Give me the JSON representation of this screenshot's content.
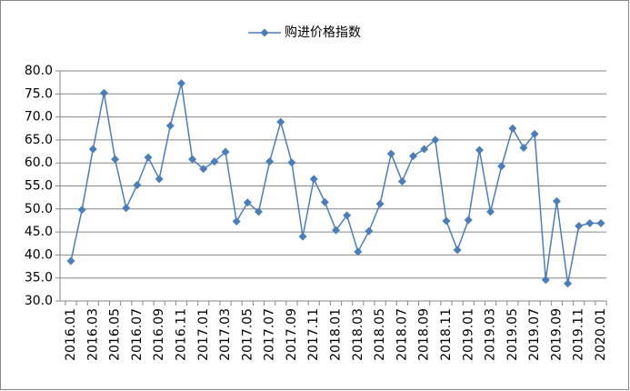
{
  "chart_data": {
    "type": "line",
    "categories": [
      "2016.01",
      null,
      "2016.03",
      null,
      "2016.05",
      null,
      "2016.07",
      null,
      "2016.09",
      null,
      "2016.11",
      null,
      "2017.01",
      null,
      "2017.03",
      null,
      "2017.05",
      null,
      "2017.07",
      null,
      "2017.09",
      null,
      "2017.11",
      null,
      "2018.01",
      null,
      "2018.03",
      null,
      "2018.05",
      null,
      "2018.07",
      null,
      "2018.09",
      null,
      "2018.11",
      null,
      "2019.01",
      null,
      "2019.03",
      null,
      "2019.05",
      null,
      "2019.07",
      null,
      "2019.09",
      null,
      "2019.11",
      null,
      "2020.01"
    ],
    "series": [
      {
        "name": "购进价格指数",
        "color": "#4a7ebb",
        "values": [
          38.7,
          49.8,
          63.0,
          75.2,
          60.8,
          50.2,
          55.2,
          61.2,
          56.5,
          68.1,
          77.3,
          60.8,
          58.7,
          60.3,
          62.4,
          47.3,
          51.4,
          49.4,
          60.3,
          68.9,
          60.1,
          44.0,
          56.5,
          51.5,
          45.4,
          48.6,
          40.7,
          45.2,
          51.1,
          62.0,
          56.0,
          61.5,
          63.0,
          65.0,
          47.4,
          41.1,
          47.6,
          62.8,
          49.4,
          59.3,
          67.5,
          63.3,
          66.3,
          34.6,
          51.7,
          33.8,
          46.3,
          46.9,
          46.9
        ]
      }
    ],
    "ylim": [
      30,
      80
    ],
    "yticks": [
      {
        "value": 30,
        "label": "30.0"
      },
      {
        "value": 35,
        "label": "35.0"
      },
      {
        "value": 40,
        "label": "40.0"
      },
      {
        "value": 45,
        "label": "45.0"
      },
      {
        "value": 50,
        "label": "50.0"
      },
      {
        "value": 55,
        "label": "55.0"
      },
      {
        "value": 60,
        "label": "60.0"
      },
      {
        "value": 65,
        "label": "65.0"
      },
      {
        "value": 70,
        "label": "70.0"
      },
      {
        "value": 75,
        "label": "75.0"
      },
      {
        "value": 80,
        "label": "80.0"
      }
    ],
    "grid": true,
    "legend": "top"
  }
}
